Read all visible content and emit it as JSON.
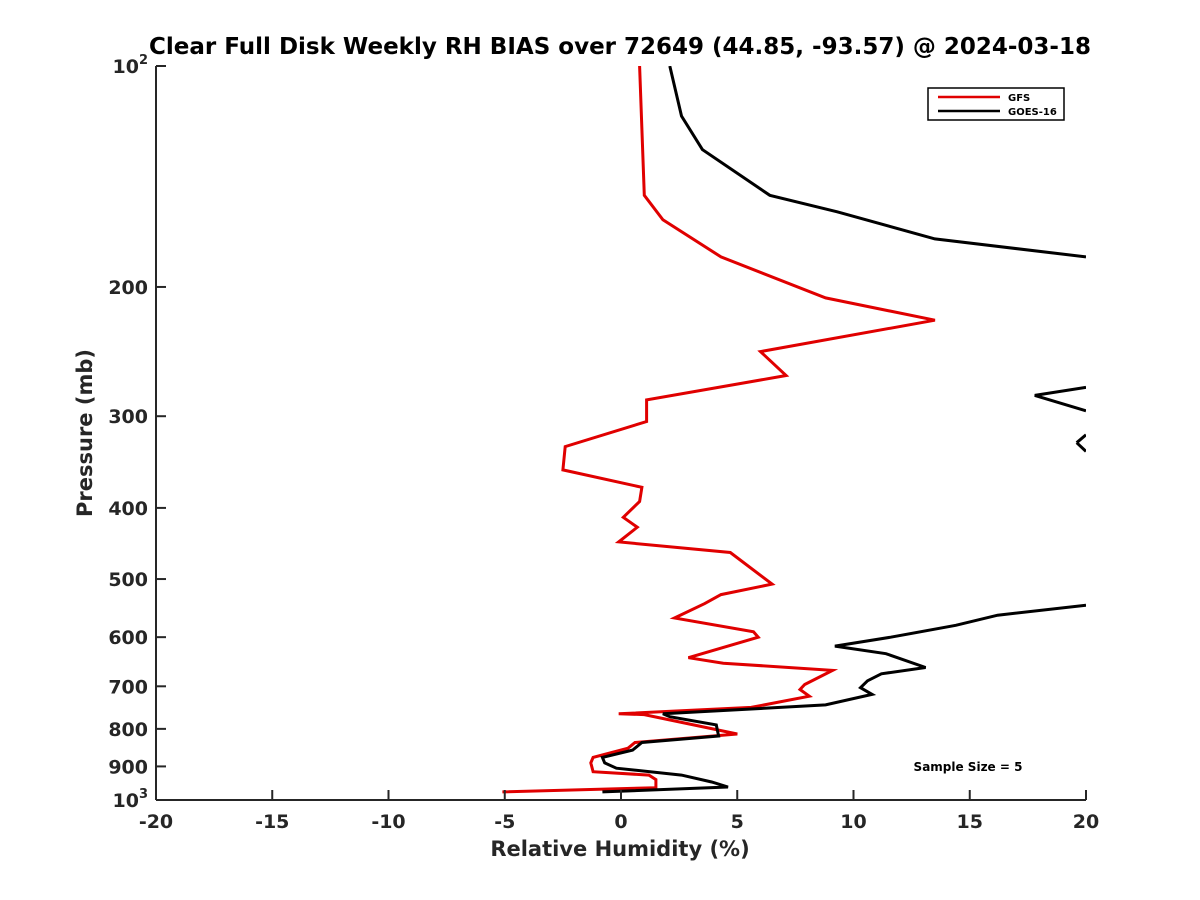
{
  "chart_data": {
    "type": "line",
    "title": "Clear Full Disk Weekly RH BIAS over 72649 (44.85, -93.57) @ 2024-03-18",
    "xlabel": "Relative Humidity (%)",
    "ylabel": "Pressure (mb)",
    "xlim": [
      -20,
      20
    ],
    "ylim": [
      100,
      1000
    ],
    "y_scale": "log",
    "y_reversed": true,
    "x_ticks": [
      "-20",
      "-15",
      "-10",
      "-5",
      "0",
      "5",
      "10",
      "15",
      "20"
    ],
    "y_ticks": [
      {
        "value": 100,
        "label": "10",
        "sup": "2"
      },
      {
        "value": 200,
        "label": "200",
        "sup": ""
      },
      {
        "value": 300,
        "label": "300",
        "sup": ""
      },
      {
        "value": 400,
        "label": "400",
        "sup": ""
      },
      {
        "value": 500,
        "label": "500",
        "sup": ""
      },
      {
        "value": 600,
        "label": "600",
        "sup": ""
      },
      {
        "value": 700,
        "label": "700",
        "sup": ""
      },
      {
        "value": 800,
        "label": "800",
        "sup": ""
      },
      {
        "value": 900,
        "label": "900",
        "sup": ""
      },
      {
        "value": 1000,
        "label": "10",
        "sup": "3"
      }
    ],
    "legend_position": "top-right",
    "grid": false,
    "annotation": "Sample Size = 5",
    "series": [
      {
        "name": "GFS",
        "color": "#e00000",
        "segments": [
          [
            [
              -5.1,
              975
            ],
            [
              1.5,
              962
            ],
            [
              1.5,
              938
            ],
            [
              1.2,
              925
            ],
            [
              -1.2,
              915
            ],
            [
              -1.3,
              890
            ],
            [
              -1.2,
              875
            ],
            [
              0.3,
              850
            ],
            [
              0.6,
              835
            ],
            [
              5.0,
              813
            ],
            [
              1.0,
              765
            ],
            [
              -0.1,
              763
            ],
            [
              5.6,
              748
            ],
            [
              8.1,
              722
            ],
            [
              7.7,
              707
            ],
            [
              7.9,
              696
            ],
            [
              9.1,
              666
            ],
            [
              4.4,
              651
            ],
            [
              2.9,
              640
            ],
            [
              5.9,
              600
            ],
            [
              5.7,
              590
            ],
            [
              2.3,
              565
            ],
            [
              3.6,
              540
            ],
            [
              4.3,
              525
            ],
            [
              6.5,
              508
            ],
            [
              4.7,
              460
            ],
            [
              -0.1,
              445
            ],
            [
              0.7,
              425
            ],
            [
              0.1,
              412
            ],
            [
              0.8,
              392
            ],
            [
              0.9,
              375
            ],
            [
              -2.5,
              355
            ],
            [
              -2.4,
              330
            ],
            [
              1.1,
              305
            ],
            [
              1.1,
              285
            ],
            [
              7.1,
              264
            ],
            [
              6.0,
              245
            ],
            [
              13.5,
              222
            ],
            [
              8.8,
              207
            ],
            [
              4.3,
              182
            ],
            [
              1.8,
              162
            ],
            [
              1.0,
              150
            ],
            [
              0.8,
              100
            ]
          ]
        ]
      },
      {
        "name": "GOES-16",
        "color": "#000000",
        "segments": [
          [
            [
              -0.8,
              975
            ],
            [
              4.6,
              960
            ],
            [
              3.9,
              945
            ],
            [
              2.6,
              925
            ],
            [
              -0.2,
              905
            ],
            [
              -0.7,
              890
            ],
            [
              -0.8,
              875
            ],
            [
              0.5,
              855
            ],
            [
              0.9,
              835
            ],
            [
              4.2,
              818
            ],
            [
              4.1,
              790
            ],
            [
              2.1,
              770
            ],
            [
              1.8,
              763
            ],
            [
              8.8,
              742
            ],
            [
              10.8,
              718
            ],
            [
              10.3,
              703
            ],
            [
              10.6,
              688
            ],
            [
              11.2,
              673
            ],
            [
              13.1,
              660
            ],
            [
              11.4,
              632
            ],
            [
              9.2,
              617
            ],
            [
              11.6,
              600
            ],
            [
              14.4,
              578
            ],
            [
              16.2,
              560
            ],
            [
              20,
              543
            ]
          ],
          [
            [
              20,
              182
            ],
            [
              13.5,
              172
            ],
            [
              9.3,
              158
            ],
            [
              6.4,
              150
            ],
            [
              3.5,
              130
            ],
            [
              2.6,
              117
            ],
            [
              2.1,
              100
            ]
          ],
          [
            [
              20,
              274
            ],
            [
              17.8,
              281
            ],
            [
              20,
              295
            ]
          ],
          [
            [
              19.6,
              326
            ],
            [
              20,
              318
            ]
          ],
          [
            [
              19.6,
              326
            ],
            [
              20,
              335
            ]
          ]
        ]
      }
    ]
  }
}
